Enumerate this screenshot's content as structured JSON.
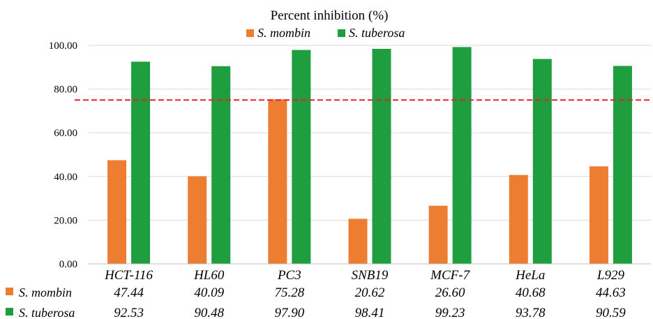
{
  "chart_data": {
    "type": "bar",
    "title": "Percent inhibition (%)",
    "categories": [
      "HCT-116",
      "HL60",
      "PC3",
      "SNB19",
      "MCF-7",
      "HeLa",
      "L929"
    ],
    "series": [
      {
        "name": "S. mombin",
        "color": "#ED7D31",
        "values": [
          47.44,
          40.09,
          75.28,
          20.62,
          26.6,
          40.68,
          44.63
        ],
        "labels": [
          "47.44",
          "40.09",
          "75.28",
          "20.62",
          "26.60",
          "40.68",
          "44.63"
        ]
      },
      {
        "name": "S. tuberosa",
        "color": "#1E9E3F",
        "values": [
          92.53,
          90.48,
          97.9,
          98.41,
          99.23,
          93.78,
          90.59
        ],
        "labels": [
          "92.53",
          "90.48",
          "97.90",
          "98.41",
          "99.23",
          "93.78",
          "90.59"
        ]
      }
    ],
    "ylim": [
      0,
      100
    ],
    "yticks": [
      "0.00",
      "20.00",
      "40.00",
      "60.00",
      "80.00",
      "100.00"
    ],
    "threshold": {
      "value": 75,
      "color": "#E8212B",
      "style": "dashed"
    },
    "grid": true,
    "legend": "top",
    "data_table": true
  }
}
